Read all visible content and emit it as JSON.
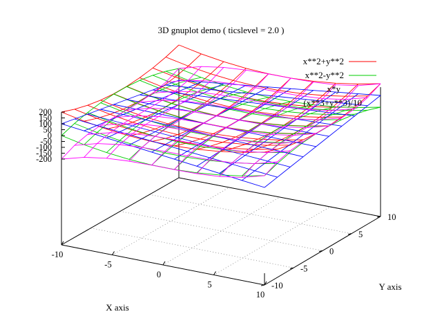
{
  "chart_data": {
    "type": "surface3d",
    "title": "3D gnuplot demo ( ticslevel = 2.0 )",
    "xlabel": "X axis",
    "ylabel": "Y axis",
    "zlabel": "",
    "xlim": [
      -10,
      10
    ],
    "ylim": [
      -10,
      10
    ],
    "zlim": [
      -200,
      200
    ],
    "ticslevel": 2.0,
    "grid": "xy-base dotted",
    "legend": "top-right",
    "x_ticks": [
      "-10",
      "-5",
      "0",
      "5",
      "10"
    ],
    "y_ticks": [
      "-10",
      "-5",
      "0",
      "5",
      "10"
    ],
    "z_ticks": [
      "200",
      "150",
      "100",
      "50",
      "0",
      "-50",
      "-100",
      "-150",
      "-200"
    ],
    "isosamples": 10,
    "series": [
      {
        "name": "x**2+y**2",
        "expr": "x*x+y*y",
        "color": "#ff0000"
      },
      {
        "name": "x**2-y**2",
        "expr": "x*x-y*y",
        "color": "#00cc00"
      },
      {
        "name": "x*y",
        "expr": "x*y",
        "color": "#0000ff"
      },
      {
        "name": "(x**3+y**3)/10",
        "expr": "(x*x*x+y*y*y)/10",
        "color": "#ff00ff"
      }
    ]
  }
}
